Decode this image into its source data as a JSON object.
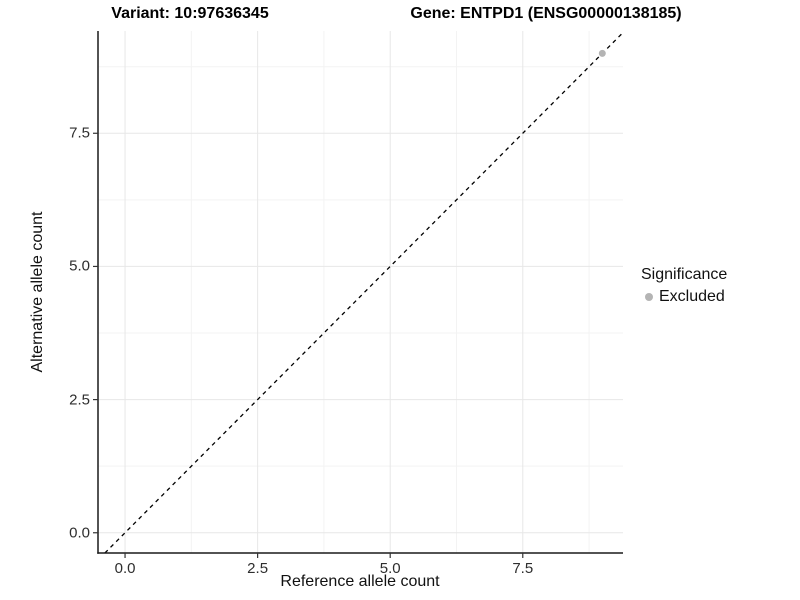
{
  "chart_data": {
    "type": "scatter",
    "title_left": "Variant: 10:97636345",
    "title_right": "Gene: ENTPD1 (ENSG00000138185)",
    "xlabel": "Reference allele count",
    "ylabel": "Alternative allele count",
    "xlim": [
      -0.51,
      9.39
    ],
    "ylim": [
      -0.38,
      9.42
    ],
    "xticks": [
      0.0,
      2.5,
      5.0,
      7.5
    ],
    "yticks": [
      0.0,
      2.5,
      5.0,
      7.5
    ],
    "xminor": [
      1.25,
      3.75,
      6.25,
      8.75
    ],
    "yminor": [
      1.25,
      3.75,
      6.25,
      8.75
    ],
    "grid": true,
    "reference_line": {
      "type": "identity",
      "slope": 1,
      "intercept": 0,
      "style": "dashed",
      "color": "#000000"
    },
    "series": [
      {
        "name": "Excluded",
        "color": "#b4b4b4",
        "points": [
          {
            "x": 9.0,
            "y": 9.0
          }
        ]
      }
    ],
    "legend": {
      "title": "Significance",
      "position": "right",
      "items": [
        {
          "label": "Excluded",
          "color": "#b4b4b4"
        }
      ]
    }
  },
  "colors": {
    "grid_major": "#e7e7e7",
    "grid_minor": "#f3f3f3",
    "axis_line": "#1a1a1a",
    "tick_mark": "#333333",
    "tick_text": "#2e2e2e",
    "background": "#ffffff"
  }
}
